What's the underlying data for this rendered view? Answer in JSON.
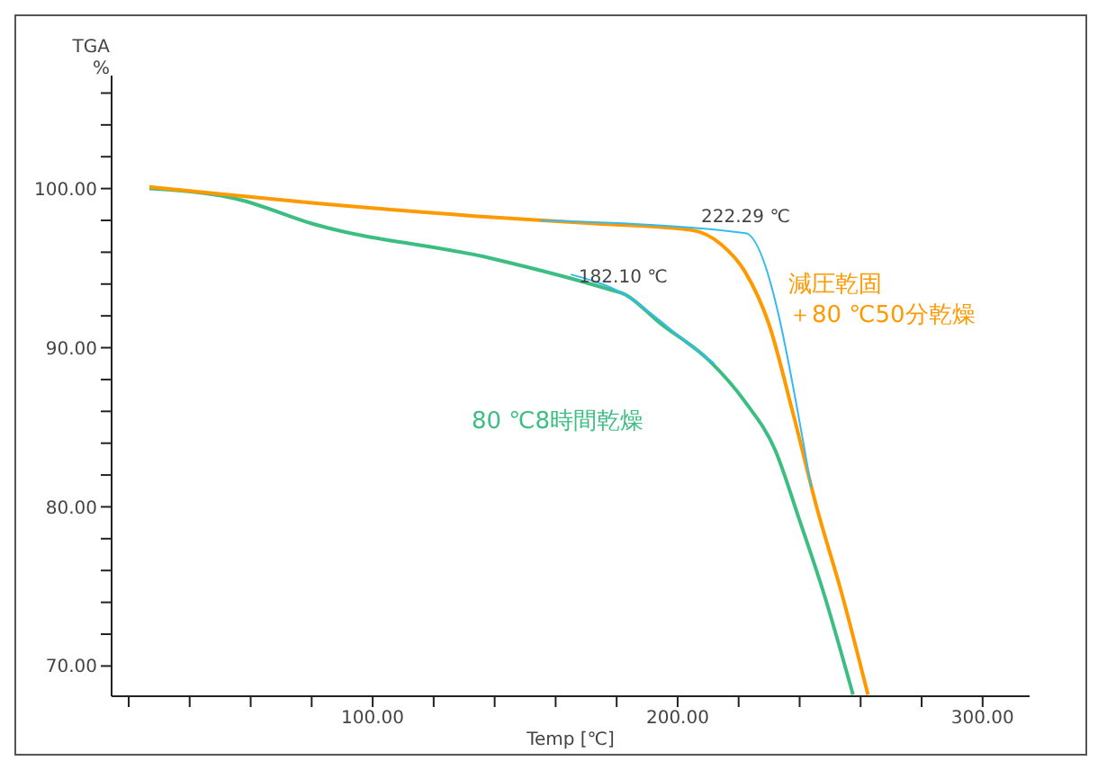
{
  "chart_data": {
    "type": "line",
    "xlabel": "Temp [℃]",
    "ylabel": "TGA\n%",
    "xlim": [
      14.4,
      315.4
    ],
    "ylim": [
      68.1,
      107.1
    ],
    "xticks": [
      {
        "value": 20,
        "label": null
      },
      {
        "value": 40,
        "label": null
      },
      {
        "value": 60,
        "label": null
      },
      {
        "value": 80,
        "label": null
      },
      {
        "value": 100,
        "label": "100.00"
      },
      {
        "value": 120,
        "label": null
      },
      {
        "value": 140,
        "label": null
      },
      {
        "value": 160,
        "label": null
      },
      {
        "value": 180,
        "label": null
      },
      {
        "value": 200,
        "label": "200.00"
      },
      {
        "value": 220,
        "label": null
      },
      {
        "value": 240,
        "label": null
      },
      {
        "value": 260,
        "label": null
      },
      {
        "value": 280,
        "label": null
      },
      {
        "value": 300,
        "label": "300.00"
      }
    ],
    "yticks": [
      {
        "value": 70,
        "label": "70.00"
      },
      {
        "value": 72,
        "label": null
      },
      {
        "value": 74,
        "label": null
      },
      {
        "value": 76,
        "label": null
      },
      {
        "value": 78,
        "label": null
      },
      {
        "value": 80,
        "label": "80.00"
      },
      {
        "value": 82,
        "label": null
      },
      {
        "value": 84,
        "label": null
      },
      {
        "value": 86,
        "label": null
      },
      {
        "value": 88,
        "label": null
      },
      {
        "value": 90,
        "label": "90.00"
      },
      {
        "value": 92,
        "label": null
      },
      {
        "value": 94,
        "label": null
      },
      {
        "value": 96,
        "label": null
      },
      {
        "value": 98,
        "label": null
      },
      {
        "value": 100,
        "label": "100.00"
      },
      {
        "value": 102,
        "label": null
      },
      {
        "value": 104,
        "label": null
      },
      {
        "value": 106,
        "label": null
      }
    ],
    "marker": "none",
    "line_style": "solid",
    "series": [
      {
        "name": "80 ℃8時間乾燥",
        "color": "#3cbe82",
        "x": [
          26.8,
          56.4,
          80,
          139.2,
          178.7,
          182.1,
          194.5,
          210.3,
          222.1,
          231.9,
          239.9,
          247.7,
          257.5
        ],
        "values": [
          100,
          99.3,
          97.8,
          95.6,
          93.6,
          93.4,
          91.5,
          89.2,
          86.6,
          83.6,
          79.2,
          74.7,
          68.2
        ]
      },
      {
        "name": "減圧乾固＋80 ℃50分乾燥",
        "color": "#ff9900",
        "x": [
          26.8,
          80,
          139.2,
          172.8,
          204.2,
          214.2,
          222,
          229.9,
          237.8,
          245.7,
          253.6,
          262.4
        ],
        "values": [
          100.1,
          99.1,
          98.2,
          97.8,
          97.4,
          96.5,
          94.8,
          91.5,
          85.9,
          79.9,
          74.7,
          68.2
        ]
      },
      {
        "color": "#33bbee",
        "x": [
          155,
          222.29,
          243.8
        ],
        "values": [
          98,
          97.2,
          81.2
        ]
      },
      {
        "color": "#33bbee",
        "x": [
          165,
          182.1,
          200,
          212
        ],
        "values": [
          94.6,
          93.4,
          90.8,
          89
        ]
      }
    ],
    "annotations": [
      {
        "text": "222.29 ℃",
        "x": 222.29,
        "y": 97.2
      },
      {
        "text": "182.10 ℃",
        "x": 182.1,
        "y": 93.4
      }
    ]
  }
}
